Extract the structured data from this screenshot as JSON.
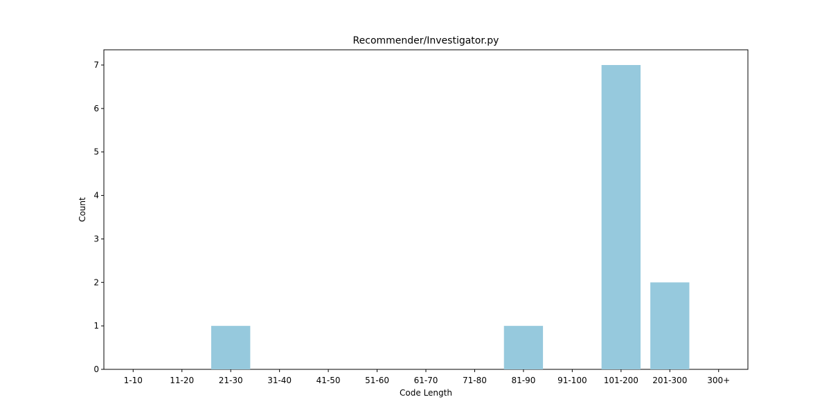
{
  "chart_data": {
    "type": "bar",
    "title": "Recommender/Investigator.py",
    "xlabel": "Code Length",
    "ylabel": "Count",
    "categories": [
      "1-10",
      "11-20",
      "21-30",
      "31-40",
      "41-50",
      "51-60",
      "61-70",
      "71-80",
      "81-90",
      "91-100",
      "101-200",
      "201-300",
      "300+"
    ],
    "values": [
      0,
      0,
      1,
      0,
      0,
      0,
      0,
      0,
      1,
      0,
      7,
      2,
      0
    ],
    "yticks": [
      0,
      1,
      2,
      3,
      4,
      5,
      6,
      7
    ],
    "ylim": [
      0,
      7.35
    ],
    "bar_color": "#96c9dd",
    "grid": false,
    "legend": "none"
  }
}
